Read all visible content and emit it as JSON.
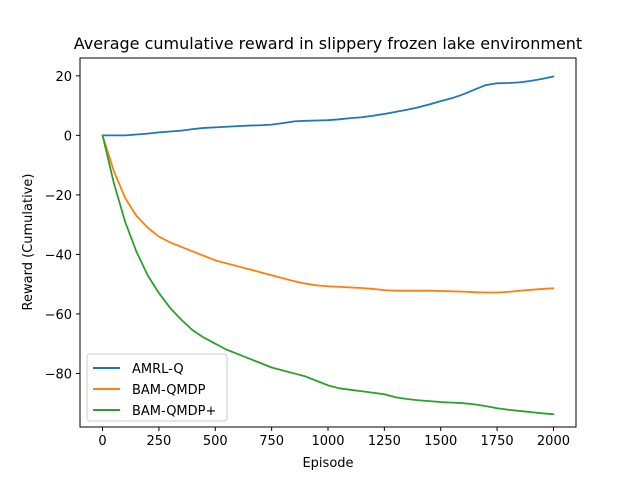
{
  "chart_data": {
    "type": "line",
    "title": "Average cumulative reward in  slippery frozen lake environment",
    "xlabel": "Episode",
    "ylabel": "Reward (Cumulative)",
    "xlim": [
      -100,
      2100
    ],
    "ylim": [
      -98,
      26
    ],
    "xticks": [
      0,
      250,
      500,
      750,
      1000,
      1250,
      1500,
      1750,
      2000
    ],
    "yticks": [
      -80,
      -60,
      -40,
      -20,
      0,
      20
    ],
    "xtick_labels": [
      "0",
      "250",
      "500",
      "750",
      "1000",
      "1250",
      "1500",
      "1750",
      "2000"
    ],
    "ytick_labels": [
      "−80",
      "−60",
      "−40",
      "−20",
      "0",
      "20"
    ],
    "grid": false,
    "legend_position": "lower-left",
    "series": [
      {
        "name": "AMRL-Q",
        "color": "#1f77b4",
        "x": [
          0,
          50,
          100,
          150,
          200,
          250,
          300,
          350,
          400,
          450,
          500,
          550,
          600,
          650,
          700,
          750,
          800,
          850,
          900,
          950,
          1000,
          1050,
          1100,
          1150,
          1200,
          1250,
          1300,
          1350,
          1400,
          1450,
          1500,
          1550,
          1600,
          1650,
          1700,
          1750,
          1800,
          1850,
          1900,
          1950,
          2000
        ],
        "y": [
          0,
          0,
          0,
          0.3,
          0.6,
          1.0,
          1.3,
          1.6,
          2.1,
          2.5,
          2.7,
          2.9,
          3.1,
          3.3,
          3.4,
          3.6,
          4.1,
          4.7,
          4.9,
          5.0,
          5.1,
          5.4,
          5.8,
          6.1,
          6.6,
          7.2,
          7.9,
          8.6,
          9.4,
          10.4,
          11.5,
          12.5,
          13.8,
          15.4,
          16.9,
          17.5,
          17.6,
          17.8,
          18.3,
          19.0,
          19.8
        ]
      },
      {
        "name": "BAM-QMDP",
        "color": "#ff7f0e",
        "x": [
          0,
          50,
          100,
          150,
          200,
          250,
          300,
          350,
          400,
          450,
          500,
          550,
          600,
          650,
          700,
          750,
          800,
          850,
          900,
          950,
          1000,
          1050,
          1100,
          1150,
          1200,
          1250,
          1300,
          1350,
          1400,
          1450,
          1500,
          1550,
          1600,
          1650,
          1700,
          1750,
          1800,
          1850,
          1900,
          1950,
          2000
        ],
        "y": [
          0,
          -12.0,
          -21.0,
          -27.0,
          -31.0,
          -34.0,
          -36.0,
          -37.5,
          -39.0,
          -40.5,
          -42.0,
          -43.0,
          -44.0,
          -45.0,
          -46.0,
          -47.0,
          -48.0,
          -49.0,
          -49.8,
          -50.4,
          -50.7,
          -50.9,
          -51.1,
          -51.3,
          -51.6,
          -52.0,
          -52.2,
          -52.2,
          -52.2,
          -52.2,
          -52.3,
          -52.4,
          -52.5,
          -52.7,
          -52.8,
          -52.8,
          -52.6,
          -52.2,
          -51.9,
          -51.6,
          -51.4
        ]
      },
      {
        "name": "BAM-QMDP+",
        "color": "#2ca02c",
        "x": [
          0,
          50,
          100,
          150,
          200,
          250,
          300,
          350,
          400,
          450,
          500,
          550,
          600,
          650,
          700,
          750,
          800,
          850,
          900,
          950,
          1000,
          1050,
          1100,
          1150,
          1200,
          1250,
          1300,
          1350,
          1400,
          1450,
          1500,
          1550,
          1600,
          1650,
          1700,
          1750,
          1800,
          1850,
          1900,
          1950,
          2000
        ],
        "y": [
          0,
          -16.0,
          -29.0,
          -39.0,
          -47.0,
          -53.0,
          -58.0,
          -62.0,
          -65.5,
          -68.0,
          -70.0,
          -72.0,
          -73.5,
          -75.0,
          -76.5,
          -78.0,
          -79.0,
          -80.0,
          -81.0,
          -82.5,
          -84.0,
          -85.0,
          -85.5,
          -86.0,
          -86.5,
          -87.0,
          -88.0,
          -88.6,
          -89.0,
          -89.3,
          -89.6,
          -89.8,
          -90.0,
          -90.4,
          -91.0,
          -91.7,
          -92.2,
          -92.6,
          -93.0,
          -93.4,
          -93.7
        ]
      }
    ]
  }
}
